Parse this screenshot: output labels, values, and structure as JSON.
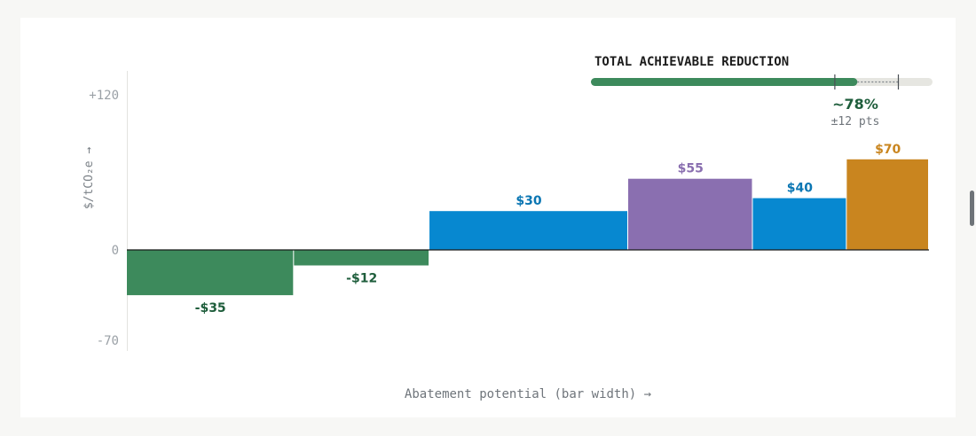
{
  "chart_data": {
    "type": "bar",
    "variant": "marginal-abatement-cost-curve",
    "categories": [
      "",
      "",
      "",
      "",
      "",
      ""
    ],
    "values": [
      -35,
      -12,
      30,
      55,
      40,
      70
    ],
    "value_labels": [
      "-$35",
      "-$12",
      "$30",
      "$55",
      "$40",
      "$70"
    ],
    "bar_widths_relative": [
      1.85,
      1.5,
      2.2,
      1.38,
      1.04,
      0.91
    ],
    "bar_colors": [
      "#3d8a5c",
      "#3d8a5c",
      "#0788d0",
      "#8a6fb0",
      "#0788d0",
      "#c9851f"
    ],
    "label_colors": [
      "#1f5e3c",
      "#1f5e3c",
      "#0a76b3",
      "#8a6fb0",
      "#0a76b3",
      "#c9851f"
    ],
    "ylim": [
      -70,
      120
    ],
    "yticks": [
      120,
      0,
      -70
    ],
    "ytick_labels": [
      "+120",
      "0",
      "-70"
    ],
    "ylabel": "$/tCO₂e →",
    "xlabel": "Abatement potential (bar width) →",
    "grid": false
  },
  "indicator": {
    "title": "TOTAL ACHIEVABLE REDUCTION",
    "value": 0.78,
    "uncertainty": 0.12,
    "value_label": "~78%",
    "uncertainty_label": "±12 pts",
    "fill_color": "#3d8a5c",
    "track_color": "#e6e6e1"
  }
}
